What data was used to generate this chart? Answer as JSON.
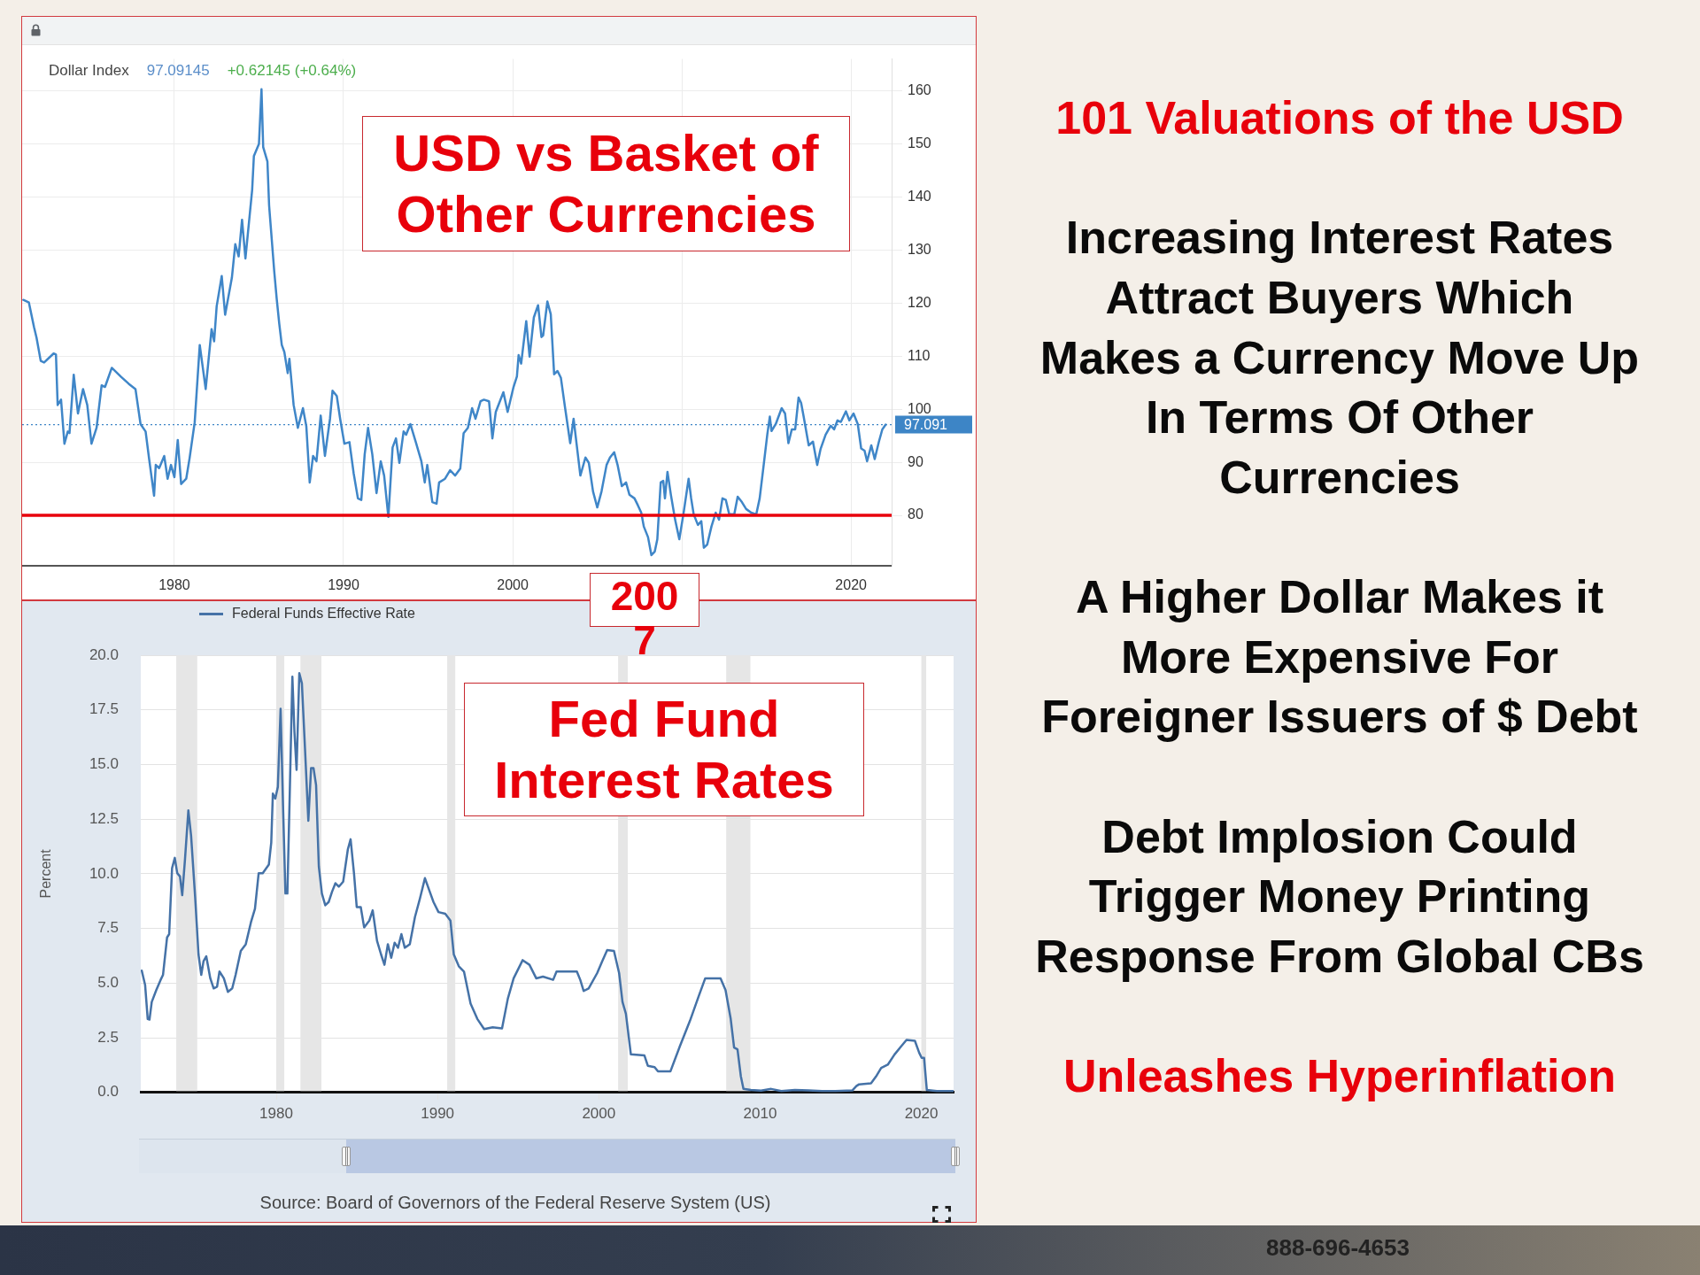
{
  "chart_data": [
    {
      "type": "line",
      "title": "USD vs Basket of Other Currencies",
      "subtitle": "Dollar Index",
      "annotations": [
        "97.09145",
        "+0.62145 (+0.64%)",
        "2007"
      ],
      "xlim": [
        1971.0,
        2022.4
      ],
      "xticks": [
        1980,
        1990,
        2000,
        {
          "value": 2010,
          "label": null
        },
        2020
      ],
      "ylim": [
        70.5,
        166
      ],
      "yticks": [
        80,
        90,
        100,
        110,
        120,
        130,
        140,
        150,
        160
      ],
      "grid": true,
      "ref_lines": [
        {
          "axis": "y",
          "value": 80,
          "color": "#e8000b",
          "line_style": "solid"
        },
        {
          "axis": "y",
          "value": 97.091,
          "label": "97.091",
          "color": "#3d85c6",
          "line_style": "dotted"
        }
      ],
      "series": [
        {
          "color": "#3f86c8",
          "x": [
            1971.07,
            1971.4,
            1971.7,
            1971.85,
            1972.1,
            1972.3,
            1972.86,
            1973.0,
            1973.1,
            1973.3,
            1973.5,
            1973.7,
            1973.8,
            1974.05,
            1974.3,
            1974.4,
            1974.6,
            1974.85,
            1975.1,
            1975.4,
            1975.7,
            1975.9,
            1976.3,
            1976.85,
            1977.3,
            1977.7,
            1978.0,
            1978.3,
            1978.5,
            1978.8,
            1978.9,
            1979.1,
            1979.4,
            1979.6,
            1979.8,
            1980.0,
            1980.2,
            1980.4,
            1980.7,
            1980.9,
            1981.2,
            1981.5,
            1981.85,
            1982.2,
            1982.35,
            1982.5,
            1982.8,
            1983.0,
            1983.4,
            1983.6,
            1983.8,
            1984.0,
            1984.2,
            1984.6,
            1984.7,
            1985.0,
            1985.15,
            1985.25,
            1985.5,
            1985.6,
            1985.9,
            1986.05,
            1986.2,
            1986.35,
            1986.5,
            1986.7,
            1986.8,
            1987.05,
            1987.3,
            1987.6,
            1987.8,
            1988.0,
            1988.2,
            1988.4,
            1988.65,
            1988.9,
            1989.2,
            1989.35,
            1989.6,
            1989.8,
            1990.05,
            1990.35,
            1990.6,
            1990.85,
            1991.05,
            1991.25,
            1991.45,
            1991.7,
            1991.95,
            1992.2,
            1992.4,
            1992.65,
            1992.9,
            1993.1,
            1993.3,
            1993.55,
            1993.7,
            1993.95,
            1994.3,
            1994.6,
            1994.8,
            1994.95,
            1995.25,
            1995.5,
            1995.65,
            1996.0,
            1996.3,
            1996.6,
            1996.9,
            1997.1,
            1997.35,
            1997.6,
            1997.8,
            1998.1,
            1998.3,
            1998.6,
            1998.8,
            1999.0,
            1999.45,
            1999.7,
            2000.05,
            2000.25,
            2000.35,
            2000.5,
            2000.8,
            2001.0,
            2001.25,
            2001.5,
            2001.7,
            2001.8,
            2002.05,
            2002.25,
            2002.45,
            2002.65,
            2002.85,
            2003.1,
            2003.4,
            2003.6,
            2004.0,
            2004.3,
            2004.5,
            2004.75,
            2005.0,
            2005.25,
            2005.55,
            2005.75,
            2006.0,
            2006.2,
            2006.45,
            2006.7,
            2006.9,
            2007.2,
            2007.4,
            2007.6,
            2007.75,
            2008.0,
            2008.2,
            2008.4,
            2008.55,
            2008.75,
            2008.9,
            2009.0,
            2009.15,
            2009.35,
            2009.6,
            2009.85,
            2010.1,
            2010.4,
            2010.55,
            2010.7,
            2010.95,
            2011.15,
            2011.3,
            2011.5,
            2011.75,
            2012.0,
            2012.2,
            2012.4,
            2012.6,
            2012.8,
            2013.1,
            2013.3,
            2013.55,
            2013.8,
            2014.1,
            2014.4,
            2014.6,
            2014.8,
            2015.05,
            2015.2,
            2015.3,
            2015.55,
            2015.9,
            2016.1,
            2016.3,
            2016.5,
            2016.7,
            2016.9,
            2017.05,
            2017.2,
            2017.5,
            2017.75,
            2018.0,
            2018.2,
            2018.5,
            2018.8,
            2019.0,
            2019.2,
            2019.4,
            2019.7,
            2019.9,
            2020.15,
            2020.4,
            2020.6,
            2020.8,
            2020.95,
            2021.2,
            2021.4,
            2021.65,
            2021.85,
            2022.05
          ],
          "values": [
            120.6,
            120.1,
            115.5,
            113.5,
            109.1,
            108.8,
            110.5,
            110.3,
            100.8,
            101.8,
            93.5,
            95.8,
            95.5,
            106.5,
            99.2,
            100.8,
            103.8,
            100.8,
            93.5,
            96.5,
            104.5,
            104.2,
            107.8,
            106.1,
            104.8,
            103.8,
            97.2,
            95.8,
            90.8,
            83.7,
            89.5,
            88.9,
            91.2,
            86.9,
            89.5,
            87.2,
            94.2,
            85.9,
            86.9,
            90.8,
            97.5,
            112.1,
            103.8,
            115.1,
            112.8,
            119.4,
            125.1,
            117.8,
            124.8,
            131.1,
            128.8,
            135.7,
            128.4,
            141.4,
            147.7,
            150.0,
            160.3,
            149.4,
            146.7,
            138.4,
            126.1,
            120.8,
            116.1,
            112.1,
            110.8,
            106.8,
            109.5,
            100.8,
            96.5,
            100.2,
            96.8,
            86.2,
            91.2,
            90.2,
            98.8,
            91.2,
            98.2,
            103.5,
            102.5,
            98.2,
            93.5,
            93.8,
            87.9,
            83.2,
            82.9,
            91.5,
            96.5,
            91.5,
            84.2,
            90.2,
            87.5,
            79.7,
            92.8,
            94.5,
            89.9,
            95.8,
            95.2,
            97.2,
            93.5,
            90.2,
            86.2,
            89.5,
            82.5,
            82.2,
            86.2,
            86.9,
            88.5,
            87.5,
            88.8,
            95.5,
            96.5,
            100.2,
            98.2,
            101.5,
            101.8,
            101.5,
            94.5,
            99.5,
            103.2,
            99.5,
            104.2,
            106.2,
            110.2,
            108.6,
            116.6,
            109.9,
            117.3,
            119.6,
            113.6,
            113.9,
            120.3,
            117.9,
            106.6,
            107.2,
            105.9,
            100.2,
            93.6,
            98.2,
            87.5,
            90.9,
            89.9,
            84.5,
            81.5,
            84.5,
            89.5,
            90.9,
            91.9,
            89.5,
            85.5,
            86.2,
            83.9,
            83.2,
            81.9,
            80.5,
            77.9,
            75.9,
            72.5,
            73.2,
            75.5,
            86.2,
            86.5,
            83.2,
            88.2,
            83.9,
            79.2,
            75.5,
            80.4,
            86.9,
            83.2,
            80.2,
            78.2,
            78.9,
            73.9,
            74.5,
            77.9,
            80.5,
            79.2,
            83.2,
            82.9,
            80.2,
            80.2,
            83.5,
            82.5,
            81.2,
            80.5,
            80.2,
            83.2,
            88.5,
            95.2,
            98.6,
            95.9,
            97.2,
            100.2,
            99.2,
            93.6,
            96.2,
            96.2,
            102.2,
            101.2,
            98.6,
            93.2,
            93.9,
            89.5,
            92.5,
            95.2,
            96.9,
            96.2,
            97.9,
            97.6,
            99.6,
            97.9,
            99.2,
            97.2,
            92.6,
            92.2,
            90.2,
            93.2,
            90.6,
            93.9,
            96.2,
            97.1
          ]
        }
      ]
    },
    {
      "type": "line",
      "title": "Fed Fund Interest Rates",
      "ylabel": "Percent",
      "annotations": [
        "Source: Board of Governors of the Federal Reserve System (US)"
      ],
      "xlim": [
        1971.6,
        2022.0
      ],
      "xticks": [
        1980,
        1990,
        2000,
        2010,
        2020
      ],
      "ylim": [
        0,
        20
      ],
      "yticks": [
        {
          "value": 0,
          "label": "0.0"
        },
        2.5,
        {
          "value": 5,
          "label": "5.0"
        },
        7.5,
        {
          "value": 10,
          "label": "10.0"
        },
        12.5,
        {
          "value": 15,
          "label": "15.0"
        },
        17.5,
        {
          "value": 20,
          "label": "20.0"
        }
      ],
      "grid": "y",
      "legend": "top left",
      "bands": [
        {
          "axis": "x",
          "from": 1973.8,
          "to": 1975.1,
          "color": "#e6e6e6"
        },
        {
          "axis": "x",
          "from": 1980.0,
          "to": 1980.5,
          "color": "#e6e6e6"
        },
        {
          "axis": "x",
          "from": 1981.5,
          "to": 1982.8,
          "color": "#e6e6e6"
        },
        {
          "axis": "x",
          "from": 1990.6,
          "to": 1991.1,
          "color": "#e6e6e6"
        },
        {
          "axis": "x",
          "from": 2001.2,
          "to": 2001.8,
          "color": "#e6e6e6"
        },
        {
          "axis": "x",
          "from": 2007.9,
          "to": 2009.4,
          "color": "#e6e6e6"
        },
        {
          "axis": "x",
          "from": 2020.0,
          "to": 2020.3,
          "color": "#e6e6e6"
        }
      ],
      "series": [
        {
          "name": "Federal Funds Effective Rate",
          "color": "#4572a7",
          "x": [
            1971.66,
            1971.87,
            1972.03,
            1972.14,
            1972.28,
            1972.56,
            1972.83,
            1972.98,
            1973.23,
            1973.36,
            1973.54,
            1973.71,
            1973.86,
            1974.03,
            1974.17,
            1974.34,
            1974.55,
            1974.72,
            1974.97,
            1975.18,
            1975.35,
            1975.49,
            1975.66,
            1975.91,
            1976.12,
            1976.33,
            1976.48,
            1976.75,
            1977.0,
            1977.27,
            1977.48,
            1977.8,
            1978.11,
            1978.43,
            1978.68,
            1978.91,
            1979.16,
            1979.54,
            1979.69,
            1979.79,
            1979.94,
            1980.1,
            1980.27,
            1980.42,
            1980.57,
            1980.69,
            1980.84,
            1981.0,
            1981.13,
            1981.26,
            1981.43,
            1981.59,
            1981.78,
            1981.99,
            1982.16,
            1982.31,
            1982.47,
            1982.64,
            1982.83,
            1983.04,
            1983.25,
            1983.46,
            1983.67,
            1983.88,
            1984.15,
            1984.44,
            1984.61,
            1984.82,
            1984.99,
            1985.24,
            1985.45,
            1985.77,
            1985.98,
            1986.25,
            1986.5,
            1986.71,
            1986.92,
            1987.13,
            1987.34,
            1987.55,
            1987.76,
            1987.97,
            1988.28,
            1988.6,
            1988.91,
            1989.22,
            1989.48,
            1989.75,
            1990.06,
            1990.48,
            1990.8,
            1991.01,
            1991.32,
            1991.64,
            1992.05,
            1992.47,
            1992.89,
            1993.42,
            1994.0,
            1994.36,
            1994.72,
            1995.28,
            1995.7,
            1996.12,
            1996.54,
            1997.17,
            1997.38,
            1998.64,
            1998.85,
            1999.06,
            1999.37,
            1999.9,
            2000.21,
            2000.52,
            2000.94,
            2001.26,
            2001.47,
            2001.68,
            2001.99,
            2002.83,
            2003.04,
            2003.46,
            2003.67,
            2004.44,
            2005.03,
            2005.66,
            2006.18,
            2006.6,
            2007.55,
            2007.86,
            2008.18,
            2008.39,
            2008.6,
            2008.81,
            2008.97,
            2009.43,
            2010.06,
            2010.69,
            2011.32,
            2012.16,
            2013.0,
            2013.84,
            2014.68,
            2015.72,
            2015.97,
            2016.14,
            2016.88,
            2017.19,
            2017.51,
            2017.92,
            2018.34,
            2018.76,
            2019.08,
            2019.6,
            2019.87,
            2020.02,
            2020.17,
            2020.34,
            2020.96,
            2021.97
          ],
          "values": [
            5.57,
            4.91,
            3.36,
            3.33,
            4.14,
            4.68,
            5.15,
            5.38,
            7.09,
            7.24,
            10.26,
            10.73,
            10.03,
            9.88,
            9.02,
            10.65,
            12.9,
            11.74,
            8.95,
            6.31,
            5.38,
            6.0,
            6.23,
            5.22,
            4.76,
            4.84,
            5.53,
            5.22,
            4.6,
            4.76,
            5.38,
            6.47,
            6.78,
            7.78,
            8.4,
            10.03,
            10.03,
            10.42,
            11.43,
            13.67,
            13.44,
            13.98,
            17.55,
            13.13,
            9.1,
            9.1,
            13.75,
            19.02,
            16.47,
            14.76,
            19.18,
            18.71,
            15.77,
            12.43,
            14.84,
            14.84,
            14.06,
            10.34,
            9.1,
            8.56,
            8.71,
            9.18,
            9.57,
            9.41,
            9.64,
            11.12,
            11.58,
            10.03,
            8.48,
            8.48,
            7.55,
            7.86,
            8.33,
            6.93,
            6.31,
            5.84,
            6.78,
            6.16,
            6.85,
            6.62,
            7.24,
            6.62,
            6.78,
            8.02,
            8.87,
            9.8,
            9.26,
            8.71,
            8.25,
            8.17,
            7.86,
            6.31,
            5.77,
            5.53,
            4.06,
            3.36,
            2.9,
            2.98,
            2.93,
            4.29,
            5.22,
            6.05,
            5.84,
            5.22,
            5.3,
            5.15,
            5.53,
            5.53,
            5.15,
            4.64,
            4.76,
            5.46,
            6.0,
            6.51,
            6.47,
            5.46,
            4.14,
            3.6,
            1.74,
            1.69,
            1.22,
            1.16,
            0.96,
            0.96,
            2.12,
            3.29,
            4.37,
            5.22,
            5.22,
            4.68,
            3.36,
            2.05,
            1.97,
            0.73,
            0.16,
            0.11,
            0.08,
            0.16,
            0.06,
            0.11,
            0.09,
            0.06,
            0.06,
            0.09,
            0.29,
            0.37,
            0.42,
            0.73,
            1.12,
            1.27,
            1.74,
            2.12,
            2.4,
            2.36,
            1.81,
            1.58,
            1.58,
            0.11,
            0.06,
            0.06
          ]
        }
      ]
    },
    {
      "type": "other",
      "title": "101 Valuations of the USD",
      "annotations": [
        "Increasing Interest Rates Attract Buyers Which Makes a Currency Move Up In Terms Of Other Currencies",
        "A Higher Dollar Makes it More Expensive For Foreigner Issuers of $ Debt",
        "Debt Implosion Could Trigger Money Printing Response From Global CBs",
        "Unleashes Hyperinflation",
        "888-696-4653"
      ]
    }
  ]
}
